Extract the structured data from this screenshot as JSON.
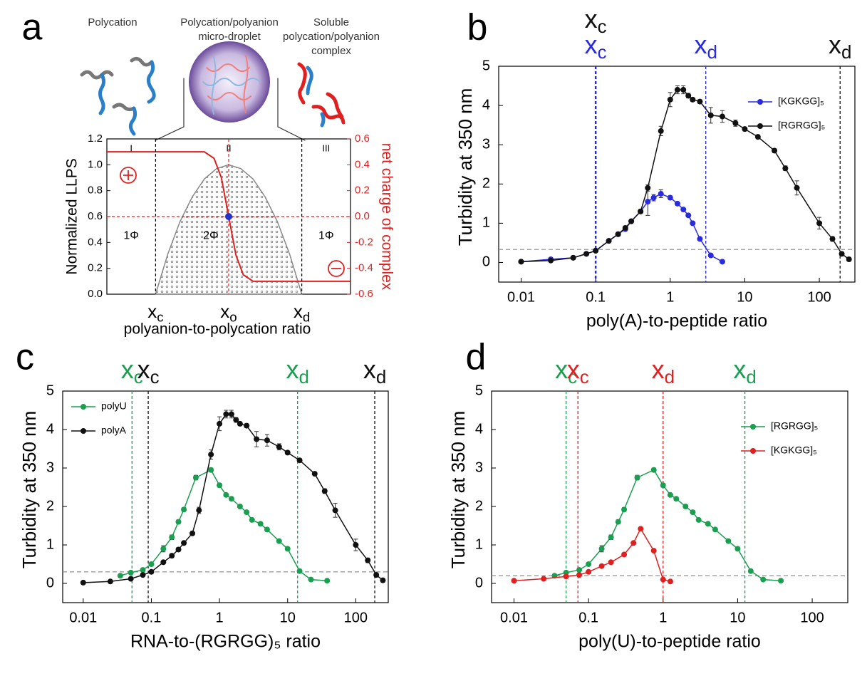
{
  "chart_data": [
    {
      "type": "area",
      "panel": "a",
      "schematic": [
        [
          "Polycation"
        ],
        [
          "Polycation/polyanion",
          "micro-droplet"
        ],
        [
          "Soluble",
          "polycation/polyanion",
          "complex"
        ]
      ],
      "xlabel": "polyanion-to-polycation ratio",
      "ylabel": "Normalized LLPS",
      "y2label": "net charge of complex",
      "xlim": [
        0,
        100
      ],
      "ylim": [
        0,
        1.2
      ],
      "y2lim": [
        -0.6,
        0.6
      ],
      "yticks": [
        {
          "value": 0,
          "label": "0.0"
        },
        0.2,
        0.4,
        0.6,
        0.8,
        {
          "value": 1,
          "label": "1.0"
        },
        1.2
      ],
      "y2ticks": [
        -0.6,
        -0.4,
        -0.2,
        {
          "value": 0,
          "label": "0.0"
        },
        0.2,
        0.4,
        0.6
      ],
      "series": [
        {
          "color": "#888888",
          "x": [
            20,
            25,
            30,
            35,
            40,
            45,
            50,
            55,
            60,
            65,
            70,
            75,
            80
          ],
          "values": [
            0,
            0.31,
            0.56,
            0.75,
            0.89,
            0.97,
            1.0,
            0.97,
            0.89,
            0.75,
            0.56,
            0.31,
            0
          ]
        },
        {
          "color": "#e02020",
          "axis": "y2",
          "x": [
            0,
            40,
            44,
            47,
            50,
            53,
            56,
            60,
            100
          ],
          "values": [
            0.5,
            0.5,
            0.45,
            0.3,
            0,
            -0.3,
            -0.45,
            -0.5,
            -0.5
          ]
        }
      ],
      "point": {
        "x": 50,
        "y2": 0,
        "color": "#2233cc"
      },
      "hlines": [
        {
          "value": 0,
          "axis": "y2",
          "color": "#e02020"
        }
      ],
      "vlines": [
        {
          "value": 20,
          "color": "#000000",
          "label": "x",
          "sub": "c"
        },
        {
          "value": 50,
          "color": "#e02020",
          "label": "x",
          "sub": "o"
        },
        {
          "value": 80,
          "color": "#000000",
          "label": "x",
          "sub": "d"
        }
      ],
      "regions": [
        {
          "label": "I",
          "phase": "1Φ"
        },
        {
          "label": "II",
          "phase": "2Φ"
        },
        {
          "label": "III",
          "phase": "1Φ"
        }
      ]
    },
    {
      "type": "line",
      "panel": "b",
      "xscale": "log",
      "legend": "upper right",
      "xlabel": "poly(A)-to-peptide ratio",
      "ylabel": "Turbidity at 350 nm",
      "xlim": [
        0.005,
        300
      ],
      "ylim": [
        -0.5,
        5
      ],
      "xticks": [
        0.01,
        0.1,
        1,
        10,
        100
      ],
      "yticks": [
        0,
        1,
        2,
        3,
        4,
        5
      ],
      "series": [
        {
          "name": "[KGKGG]₅",
          "color": "#2a2adf",
          "x": [
            0.01,
            0.025,
            0.05,
            0.075,
            0.1,
            0.15,
            0.2,
            0.25,
            0.3,
            0.4,
            0.5,
            0.6,
            0.75,
            1,
            1.25,
            1.5,
            1.75,
            2,
            2.5,
            3.5,
            5
          ],
          "values": [
            0.02,
            0.08,
            0.12,
            0.22,
            0.3,
            0.55,
            0.72,
            0.85,
            1.05,
            1.3,
            1.55,
            1.65,
            1.75,
            1.65,
            1.5,
            1.35,
            1.2,
            1.0,
            0.6,
            0.18,
            0.02
          ],
          "errors": [
            0.02,
            0.02,
            0.02,
            0.02,
            0.02,
            0.03,
            0.03,
            0.03,
            0.03,
            0.05,
            0.35,
            0.08,
            0.1,
            0.05,
            0.04,
            0.04,
            0.04,
            0.04,
            0.04,
            0.04,
            0.02
          ]
        },
        {
          "name": "[RGRGG]₅",
          "color": "#111111",
          "x": [
            0.01,
            0.025,
            0.05,
            0.075,
            0.1,
            0.15,
            0.2,
            0.25,
            0.3,
            0.4,
            0.5,
            0.75,
            1,
            1.25,
            1.5,
            1.75,
            2,
            2.5,
            3.5,
            5,
            7.5,
            10,
            15,
            25,
            35,
            50,
            100,
            150,
            200,
            250
          ],
          "values": [
            0.02,
            0.05,
            0.12,
            0.22,
            0.3,
            0.55,
            0.72,
            0.88,
            1.05,
            1.3,
            1.9,
            3.35,
            4.15,
            4.4,
            4.4,
            4.25,
            4.15,
            4.1,
            3.75,
            3.72,
            3.55,
            3.4,
            3.2,
            2.85,
            2.4,
            1.9,
            1.0,
            0.6,
            0.22,
            0.08
          ],
          "errors": [
            0.02,
            0.03,
            0.03,
            0.03,
            0.03,
            0.03,
            0.05,
            0.05,
            0.05,
            0.05,
            0.08,
            0.12,
            0.18,
            0.1,
            0.1,
            0.06,
            0.05,
            0.05,
            0.2,
            0.15,
            0.08,
            0.05,
            0.05,
            0.05,
            0.06,
            0.18,
            0.15,
            0.06,
            0.05,
            0.05
          ]
        }
      ],
      "hlines": [
        {
          "value": 0.33,
          "color": "#999999"
        }
      ],
      "vlines": [
        {
          "value": 0.1,
          "color": "#111111",
          "label": "x",
          "sub": "c"
        },
        {
          "value": 0.1,
          "color": "#2a2adf",
          "label": "x",
          "sub": "c"
        },
        {
          "value": 3,
          "color": "#2a2adf",
          "label": "x",
          "sub": "d"
        },
        {
          "value": 190,
          "color": "#111111",
          "label": "x",
          "sub": "d"
        }
      ]
    },
    {
      "type": "line",
      "panel": "c",
      "xscale": "log",
      "legend": "upper left",
      "xlabel": "RNA-to-(RGRGG)₅ ratio",
      "ylabel": "Turbidity at 350 nm",
      "xlim": [
        0.005,
        300
      ],
      "ylim": [
        -0.5,
        5
      ],
      "xticks": [
        0.01,
        0.1,
        1,
        10,
        100
      ],
      "yticks": [
        0,
        1,
        2,
        3,
        4,
        5
      ],
      "series": [
        {
          "name": "polyU",
          "color": "#1a9e50",
          "x": [
            0.035,
            0.05,
            0.075,
            0.1,
            0.15,
            0.2,
            0.25,
            0.3,
            0.45,
            0.75,
            1,
            1.25,
            1.5,
            2,
            2.5,
            3,
            4,
            5,
            7.5,
            10,
            15,
            22,
            38
          ],
          "values": [
            0.2,
            0.28,
            0.35,
            0.5,
            0.9,
            1.2,
            1.6,
            1.92,
            2.75,
            2.95,
            2.55,
            2.3,
            2.2,
            2.0,
            1.85,
            1.65,
            1.55,
            1.4,
            1.1,
            0.9,
            0.32,
            0.1,
            0.07
          ],
          "errors": [
            0.03,
            0.03,
            0.03,
            0.03,
            0.08,
            0.06,
            0.05,
            0.05,
            0.06,
            0.05,
            0.05,
            0.04,
            0.04,
            0.04,
            0.04,
            0.04,
            0.04,
            0.04,
            0.04,
            0.04,
            0.03,
            0.03,
            0.03
          ]
        },
        {
          "name": "polyA",
          "color": "#111111",
          "x": [
            0.01,
            0.025,
            0.05,
            0.075,
            0.1,
            0.15,
            0.2,
            0.25,
            0.3,
            0.4,
            0.5,
            0.75,
            1,
            1.25,
            1.5,
            1.75,
            2,
            2.5,
            3.5,
            5,
            7.5,
            10,
            15,
            25,
            35,
            50,
            100,
            150,
            200,
            250
          ],
          "values": [
            0.02,
            0.05,
            0.12,
            0.22,
            0.3,
            0.55,
            0.72,
            0.88,
            1.05,
            1.3,
            1.9,
            3.35,
            4.15,
            4.4,
            4.4,
            4.25,
            4.15,
            4.1,
            3.75,
            3.72,
            3.55,
            3.4,
            3.2,
            2.85,
            2.4,
            1.9,
            1.0,
            0.6,
            0.22,
            0.08
          ],
          "errors": [
            0.02,
            0.03,
            0.03,
            0.03,
            0.03,
            0.03,
            0.05,
            0.05,
            0.05,
            0.05,
            0.08,
            0.12,
            0.18,
            0.1,
            0.1,
            0.06,
            0.05,
            0.05,
            0.2,
            0.15,
            0.08,
            0.05,
            0.05,
            0.05,
            0.06,
            0.18,
            0.15,
            0.06,
            0.05,
            0.05
          ]
        }
      ],
      "hlines": [
        {
          "value": 0.3,
          "color": "#999999"
        }
      ],
      "vlines": [
        {
          "value": 0.052,
          "color": "#1a9e50",
          "label": "x",
          "sub": "c"
        },
        {
          "value": 0.09,
          "color": "#111111",
          "label": "x",
          "sub": "c"
        },
        {
          "value": 14,
          "color": "#1a9e50",
          "label": "x",
          "sub": "d"
        },
        {
          "value": 190,
          "color": "#111111",
          "label": "x",
          "sub": "d"
        }
      ]
    },
    {
      "type": "line",
      "panel": "d",
      "xscale": "log",
      "legend": "upper right",
      "xlabel": "poly(U)-to-peptide ratio",
      "ylabel": "Turbidity at 350 nm",
      "xlim": [
        0.005,
        300
      ],
      "ylim": [
        -0.5,
        5
      ],
      "xticks": [
        0.01,
        0.1,
        1,
        10,
        100
      ],
      "yticks": [
        0,
        1,
        2,
        3,
        4,
        5
      ],
      "series": [
        {
          "name": "[RGRGG]₅",
          "color": "#1a9e50",
          "x": [
            0.035,
            0.05,
            0.075,
            0.1,
            0.15,
            0.2,
            0.25,
            0.3,
            0.45,
            0.75,
            1,
            1.25,
            1.5,
            2,
            2.5,
            3,
            4,
            5,
            7.5,
            10,
            15,
            22,
            38
          ],
          "values": [
            0.2,
            0.28,
            0.35,
            0.5,
            0.9,
            1.2,
            1.6,
            1.92,
            2.75,
            2.95,
            2.55,
            2.3,
            2.2,
            2.0,
            1.85,
            1.65,
            1.55,
            1.4,
            1.1,
            0.9,
            0.32,
            0.1,
            0.07
          ],
          "errors": [
            0.03,
            0.03,
            0.03,
            0.03,
            0.08,
            0.06,
            0.05,
            0.05,
            0.06,
            0.05,
            0.05,
            0.04,
            0.04,
            0.04,
            0.04,
            0.04,
            0.04,
            0.04,
            0.04,
            0.04,
            0.03,
            0.03,
            0.03
          ]
        },
        {
          "name": "[KGKGG]₅",
          "color": "#e02020",
          "x": [
            0.01,
            0.025,
            0.05,
            0.075,
            0.1,
            0.15,
            0.2,
            0.3,
            0.4,
            0.5,
            0.75,
            1,
            1.25
          ],
          "values": [
            0.07,
            0.12,
            0.18,
            0.22,
            0.3,
            0.45,
            0.55,
            0.75,
            1.05,
            1.42,
            0.85,
            0.1,
            0.05
          ],
          "errors": [
            0.03,
            0.03,
            0.03,
            0.03,
            0.03,
            0.03,
            0.03,
            0.03,
            0.03,
            0.03,
            0.03,
            0.03,
            0.03
          ]
        }
      ],
      "hlines": [
        {
          "value": 0.2,
          "color": "#999999"
        }
      ],
      "vlines": [
        {
          "value": 0.05,
          "color": "#1a9e50",
          "label": "x",
          "sub": "c"
        },
        {
          "value": 0.072,
          "color": "#e02020",
          "label": "x",
          "sub": "c"
        },
        {
          "value": 1,
          "color": "#e02020",
          "label": "x",
          "sub": "d"
        },
        {
          "value": 12.5,
          "color": "#1a9e50",
          "label": "x",
          "sub": "d"
        }
      ]
    }
  ]
}
